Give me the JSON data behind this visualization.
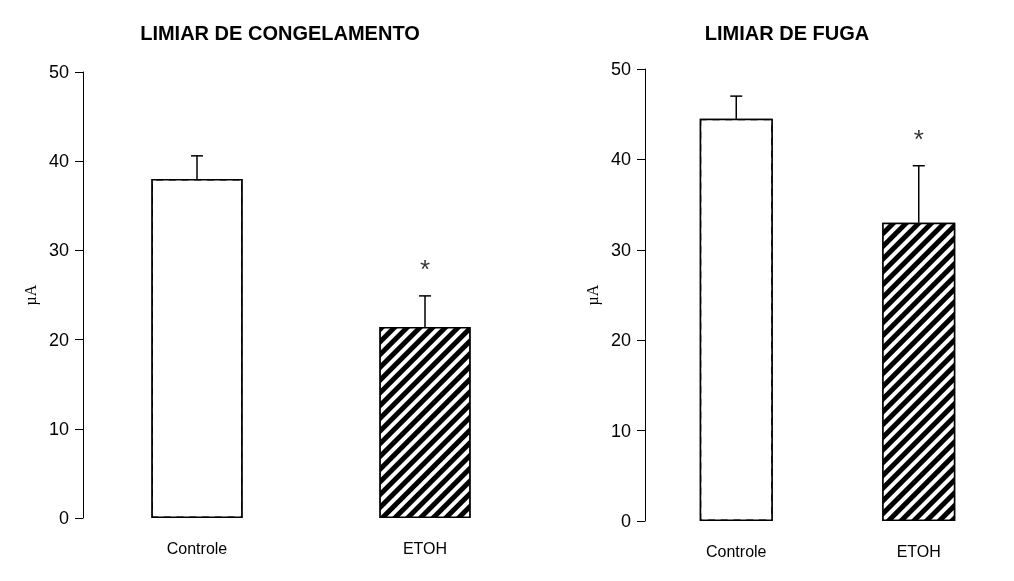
{
  "chart_data": [
    {
      "type": "bar",
      "title": "LIMIAR DE CONGELAMENTO",
      "ylabel": "µA",
      "categories": [
        "Controle",
        "ETOH"
      ],
      "values": [
        38,
        21.4
      ],
      "colors": [
        "#ffffff",
        "#000000"
      ],
      "errors": [
        2.6,
        3.5
      ],
      "ylim": [
        0,
        50
      ],
      "yticks": [
        0,
        10,
        20,
        30,
        40,
        50
      ],
      "grid": false,
      "annotations": [
        "*"
      ]
    },
    {
      "type": "bar",
      "title": "LIMIAR DE FUGA",
      "ylabel": "µA",
      "categories": [
        "Controle",
        "ETOH"
      ],
      "values": [
        44.5,
        33
      ],
      "colors": [
        "#ffffff",
        "#000000"
      ],
      "errors": [
        2.5,
        6.3
      ],
      "ylim": [
        0,
        50
      ],
      "yticks": [
        0,
        10,
        20,
        30,
        40,
        50
      ],
      "grid": false,
      "annotations": [
        "*"
      ]
    }
  ]
}
